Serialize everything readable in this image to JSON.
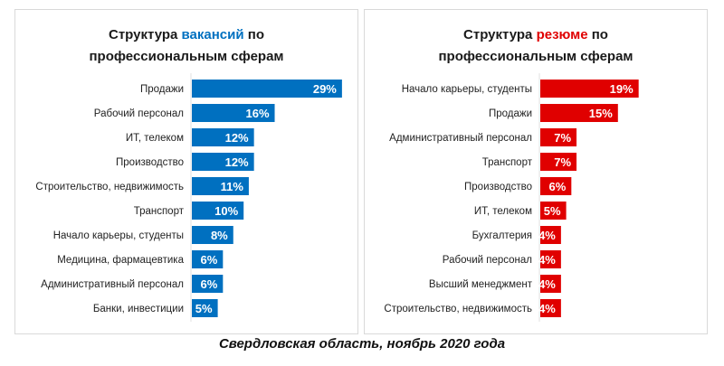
{
  "chart_data": [
    {
      "type": "bar",
      "orientation": "horizontal",
      "title_parts": [
        "Структура ",
        "вакансий",
        " по",
        "профессиональным сферам"
      ],
      "color": "#0070c0",
      "categories": [
        "Продажи",
        "Рабочий персонал",
        "ИТ, телеком",
        "Производство",
        "Строительство, недвижимость",
        "Транспорт",
        "Начало карьеры, студенты",
        "Медицина, фармацевтика",
        "Административный персонал",
        "Банки, инвестиции"
      ],
      "values": [
        29,
        16,
        12,
        12,
        11,
        10,
        8,
        6,
        6,
        5
      ],
      "labels": [
        "29%",
        "16%",
        "12%",
        "12%",
        "11%",
        "10%",
        "8%",
        "6%",
        "6%",
        "5%"
      ],
      "unit": "%"
    },
    {
      "type": "bar",
      "orientation": "horizontal",
      "title_parts": [
        "Структура ",
        "резюме",
        " по",
        "профессиональным сферам"
      ],
      "color": "#e00000",
      "categories": [
        "Начало карьеры, студенты",
        "Продажи",
        "Административный персонал",
        "Транспорт",
        "Производство",
        "ИТ, телеком",
        "Бухгалтерия",
        "Рабочий персонал",
        "Высший менеджмент",
        "Строительство, недвижимость"
      ],
      "values": [
        19,
        15,
        7,
        7,
        6,
        5,
        4,
        4,
        4,
        4
      ],
      "labels": [
        "19%",
        "15%",
        "7%",
        "7%",
        "6%",
        "5%",
        "4%",
        "4%",
        "4%",
        "4%"
      ],
      "unit": "%"
    }
  ],
  "caption": "Свердловская область, ноябрь 2020 года"
}
